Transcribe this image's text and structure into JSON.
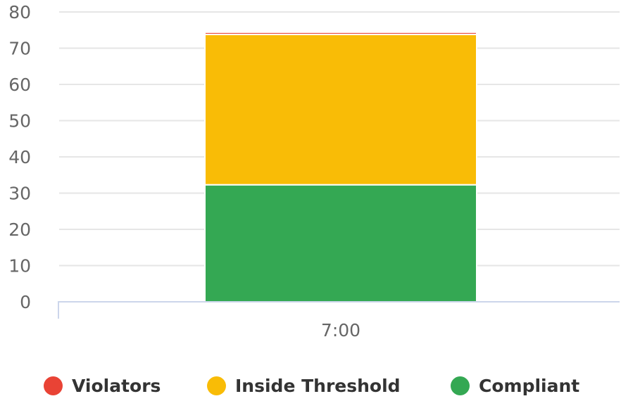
{
  "chart_data": {
    "type": "bar",
    "stacked": true,
    "categories": [
      "7:00"
    ],
    "series": [
      {
        "name": "Compliant",
        "values": [
          32.3
        ],
        "color": "#34a853"
      },
      {
        "name": "Inside Threshold",
        "values": [
          41.5
        ],
        "color": "#f9bc06"
      },
      {
        "name": "Violators",
        "values": [
          0.6
        ],
        "color": "#e94335"
      }
    ],
    "yticks": [
      0,
      10,
      20,
      30,
      40,
      50,
      60,
      70,
      80
    ],
    "ylim": [
      0,
      80
    ],
    "grid": true,
    "legend_position": "bottom",
    "legend_order": [
      "Violators",
      "Inside Threshold",
      "Compliant"
    ]
  }
}
